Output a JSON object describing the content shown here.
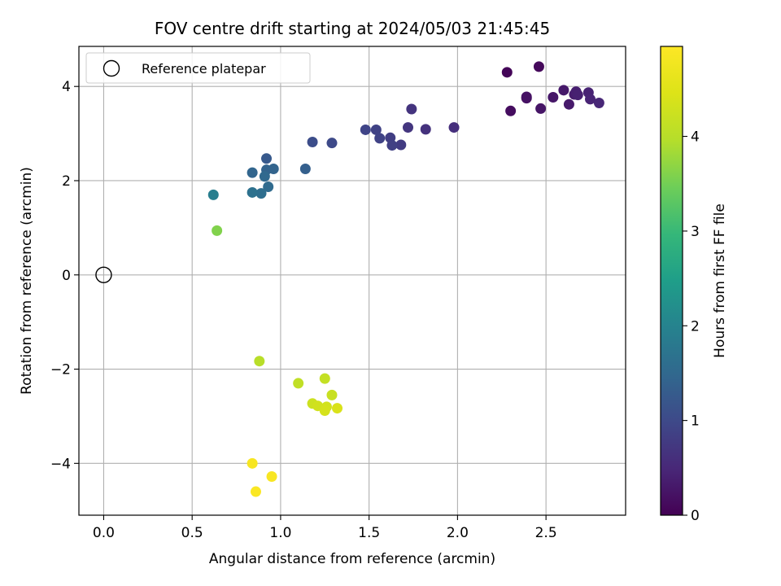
{
  "chart_data": {
    "type": "scatter",
    "title": "FOV centre drift starting at 2024/05/03 21:45:45",
    "xlabel": "Angular distance from reference (arcmin)",
    "ylabel": "Rotation from reference (arcmin)",
    "xlim": [
      -0.14,
      2.95
    ],
    "ylim": [
      -5.1,
      4.85
    ],
    "xticks": [
      0.0,
      0.5,
      1.0,
      1.5,
      2.0,
      2.5
    ],
    "xtick_labels": [
      "0.0",
      "0.5",
      "1.0",
      "1.5",
      "2.0",
      "2.5"
    ],
    "yticks": [
      -4,
      -2,
      0,
      2,
      4
    ],
    "ytick_labels": [
      "−4",
      "−2",
      "0",
      "2",
      "4"
    ],
    "grid": true,
    "legend": {
      "placement": "top-left",
      "label": "Reference platepar"
    },
    "reference_point": {
      "x": 0.0,
      "y": 0.0
    },
    "colorbar": {
      "label": "Hours from first FF file",
      "colormap": "viridis",
      "range": [
        0,
        4.95
      ],
      "ticks": [
        0,
        1,
        2,
        3,
        4
      ],
      "tick_labels": [
        "0",
        "1",
        "2",
        "3",
        "4"
      ]
    },
    "series": [
      {
        "points": [
          {
            "x": 2.28,
            "y": 4.3,
            "c": 0.05
          },
          {
            "x": 2.46,
            "y": 4.42,
            "c": 0.1
          },
          {
            "x": 2.3,
            "y": 3.48,
            "c": 0.15
          },
          {
            "x": 2.39,
            "y": 3.75,
            "c": 0.2
          },
          {
            "x": 2.39,
            "y": 3.78,
            "c": 0.22
          },
          {
            "x": 2.47,
            "y": 3.53,
            "c": 0.25
          },
          {
            "x": 2.54,
            "y": 3.77,
            "c": 0.28
          },
          {
            "x": 2.6,
            "y": 3.92,
            "c": 0.3
          },
          {
            "x": 2.63,
            "y": 3.62,
            "c": 0.32
          },
          {
            "x": 2.66,
            "y": 3.83,
            "c": 0.35
          },
          {
            "x": 2.67,
            "y": 3.89,
            "c": 0.38
          },
          {
            "x": 2.68,
            "y": 3.82,
            "c": 0.4
          },
          {
            "x": 2.74,
            "y": 3.87,
            "c": 0.42
          },
          {
            "x": 2.75,
            "y": 3.73,
            "c": 0.45
          },
          {
            "x": 2.8,
            "y": 3.65,
            "c": 0.48
          },
          {
            "x": 1.98,
            "y": 3.13,
            "c": 0.6
          },
          {
            "x": 1.82,
            "y": 3.09,
            "c": 0.65
          },
          {
            "x": 1.74,
            "y": 3.52,
            "c": 0.68
          },
          {
            "x": 1.72,
            "y": 3.13,
            "c": 0.7
          },
          {
            "x": 1.68,
            "y": 2.76,
            "c": 0.78
          },
          {
            "x": 1.62,
            "y": 2.91,
            "c": 0.82
          },
          {
            "x": 1.63,
            "y": 2.75,
            "c": 0.85
          },
          {
            "x": 1.54,
            "y": 3.08,
            "c": 0.88
          },
          {
            "x": 1.56,
            "y": 2.9,
            "c": 0.9
          },
          {
            "x": 1.48,
            "y": 3.08,
            "c": 0.92
          },
          {
            "x": 1.29,
            "y": 2.8,
            "c": 1.0
          },
          {
            "x": 1.18,
            "y": 2.82,
            "c": 1.05
          },
          {
            "x": 1.14,
            "y": 2.25,
            "c": 1.35
          },
          {
            "x": 0.92,
            "y": 2.47,
            "c": 1.25
          },
          {
            "x": 0.92,
            "y": 2.23,
            "c": 1.4
          },
          {
            "x": 0.96,
            "y": 2.25,
            "c": 1.42
          },
          {
            "x": 0.91,
            "y": 2.09,
            "c": 1.5
          },
          {
            "x": 0.84,
            "y": 2.17,
            "c": 1.45
          },
          {
            "x": 0.93,
            "y": 1.87,
            "c": 1.55
          },
          {
            "x": 0.89,
            "y": 1.73,
            "c": 1.6
          },
          {
            "x": 0.84,
            "y": 1.75,
            "c": 1.65
          },
          {
            "x": 0.62,
            "y": 1.7,
            "c": 1.9
          },
          {
            "x": 0.64,
            "y": 0.94,
            "c": 3.6
          },
          {
            "x": 0.88,
            "y": -1.83,
            "c": 4.0
          },
          {
            "x": 1.1,
            "y": -2.3,
            "c": 4.1
          },
          {
            "x": 1.25,
            "y": -2.2,
            "c": 4.15
          },
          {
            "x": 1.29,
            "y": -2.55,
            "c": 4.2
          },
          {
            "x": 1.18,
            "y": -2.73,
            "c": 4.25
          },
          {
            "x": 1.21,
            "y": -2.78,
            "c": 4.3
          },
          {
            "x": 1.26,
            "y": -2.8,
            "c": 4.32
          },
          {
            "x": 1.25,
            "y": -2.88,
            "c": 4.35
          },
          {
            "x": 1.32,
            "y": -2.83,
            "c": 4.4
          },
          {
            "x": 0.84,
            "y": -4.0,
            "c": 4.85
          },
          {
            "x": 0.95,
            "y": -4.28,
            "c": 4.88
          },
          {
            "x": 0.86,
            "y": -4.6,
            "c": 4.9
          }
        ]
      }
    ]
  }
}
